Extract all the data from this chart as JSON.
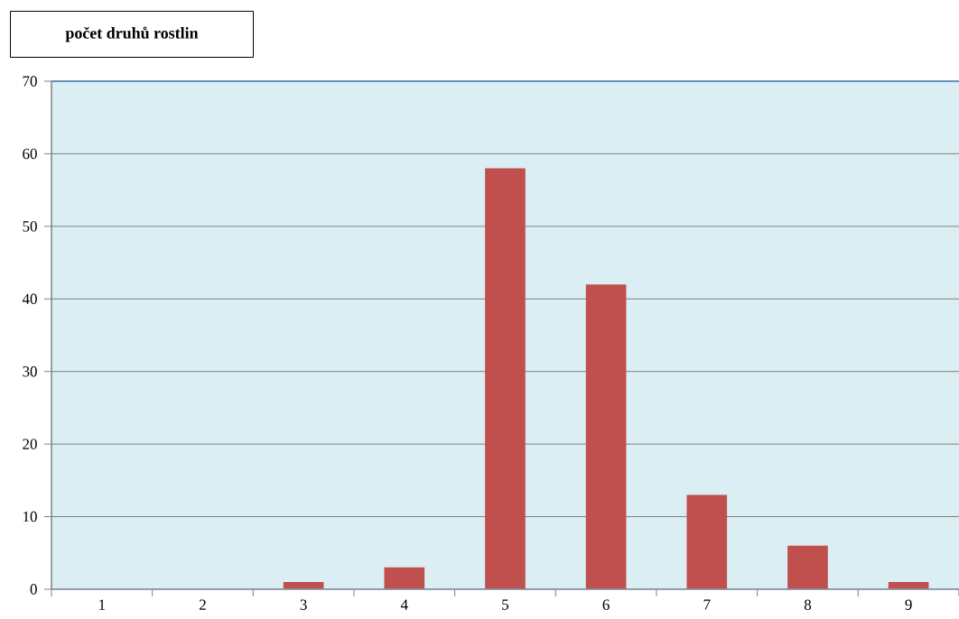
{
  "chart_data": {
    "type": "bar",
    "ylabel": "počet druhů rostlin",
    "categories": [
      "1",
      "2",
      "3",
      "4",
      "5",
      "6",
      "7",
      "8",
      "9"
    ],
    "values": [
      0,
      0,
      1,
      3,
      58,
      42,
      13,
      6,
      1
    ],
    "color": "#c0504d",
    "ylim": [
      0,
      70
    ],
    "yticks": [
      0,
      10,
      20,
      30,
      40,
      50,
      60,
      70
    ],
    "grid": "y"
  }
}
